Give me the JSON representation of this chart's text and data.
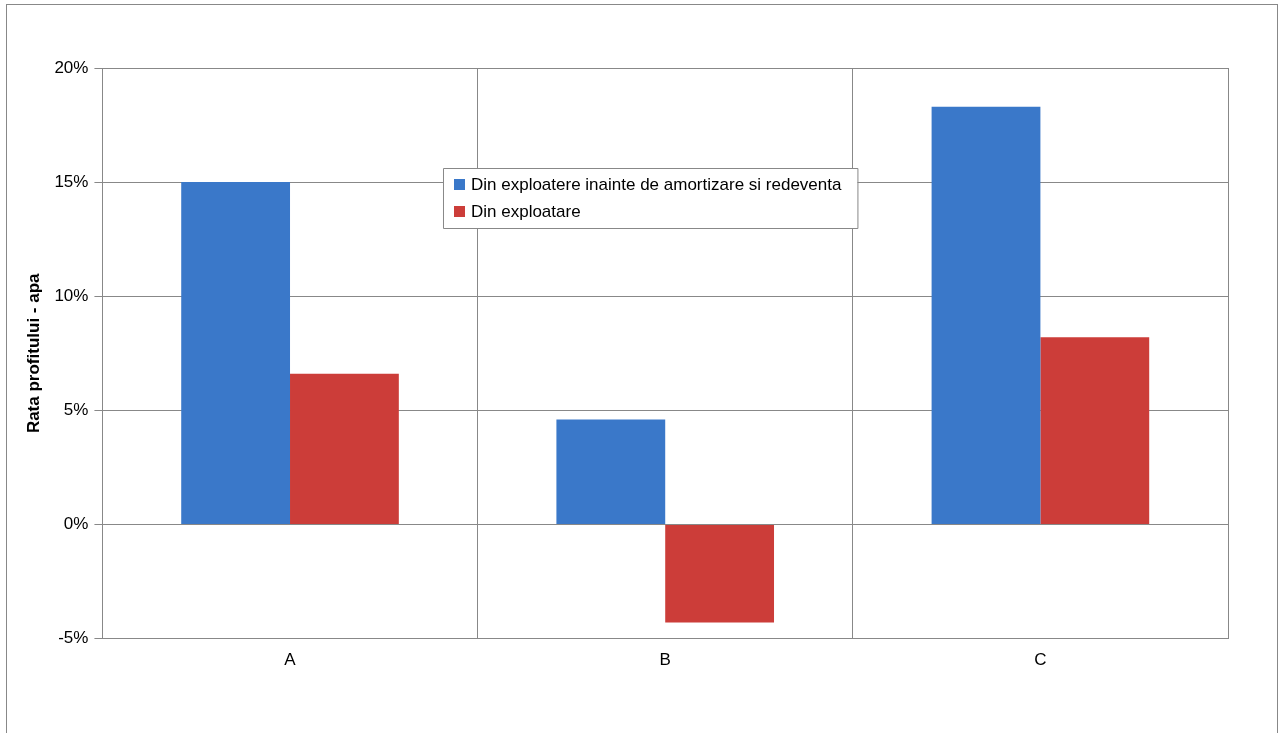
{
  "chart_data": {
    "type": "bar",
    "ylabel": "Rata profitului - apa",
    "categories": [
      "A",
      "B",
      "C"
    ],
    "series": [
      {
        "name": "Din exploatere inainte de amortizare si redeventa",
        "color": "#3a78c9",
        "values": [
          15.0,
          4.6,
          18.3
        ]
      },
      {
        "name": "Din exploatare",
        "color": "#cc3d39",
        "values": [
          6.6,
          -4.3,
          8.2
        ]
      }
    ],
    "ylim": [
      -5,
      20
    ],
    "yticks": [
      {
        "value": -5,
        "label": "-5%"
      },
      {
        "value": 0,
        "label": "0%"
      },
      {
        "value": 5,
        "label": "5%"
      },
      {
        "value": 10,
        "label": "10%"
      },
      {
        "value": 15,
        "label": "15%"
      },
      {
        "value": 20,
        "label": "20%"
      }
    ],
    "grid": true,
    "legend": "top"
  }
}
